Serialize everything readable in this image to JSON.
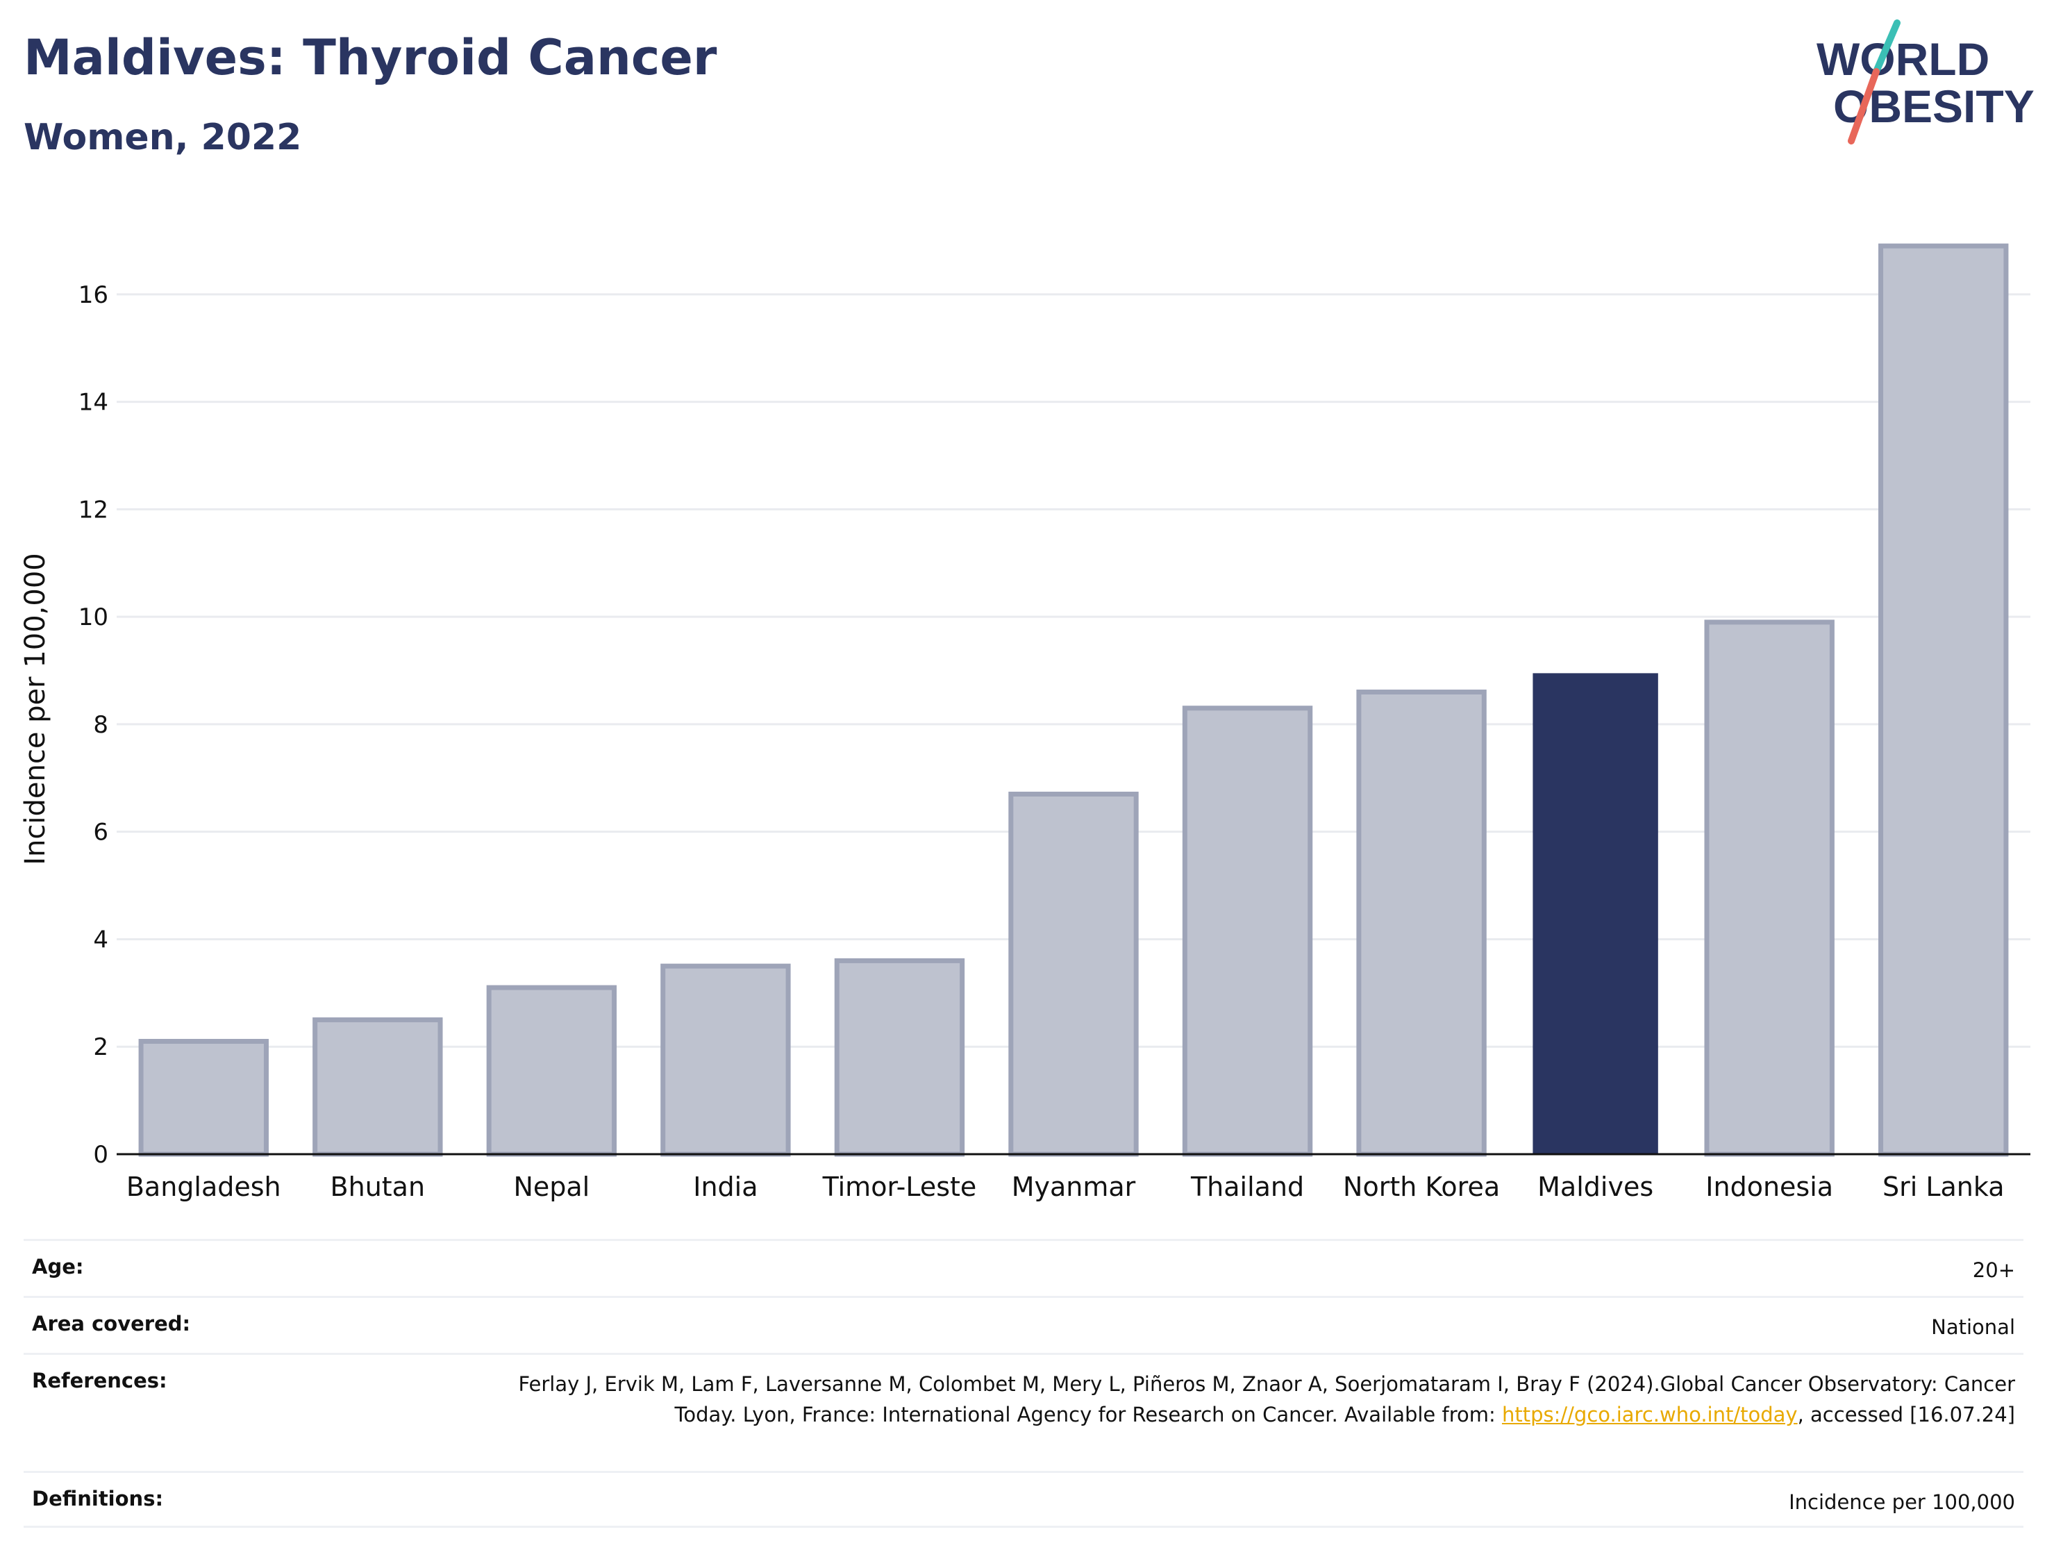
{
  "header": {
    "title": "Maldives: Thyroid Cancer",
    "subtitle": "Women, 2022"
  },
  "logo": {
    "line1": "WORLD",
    "line2": "OBESITY",
    "colors": {
      "text": "#2a3561",
      "slash_top": "#3bbfb5",
      "slash_bottom": "#e8675a"
    }
  },
  "colors": {
    "bar": "#bec2cf",
    "bar_border": "#9ea4b8",
    "highlight": "#2a3561",
    "grid": "#e9ebef",
    "axis": "#111111",
    "link": "#e8a900"
  },
  "chart_data": {
    "type": "bar",
    "categories": [
      "Bangladesh",
      "Bhutan",
      "Nepal",
      "India",
      "Timor-Leste",
      "Myanmar",
      "Thailand",
      "North Korea",
      "Maldives",
      "Indonesia",
      "Sri Lanka"
    ],
    "values": [
      2.1,
      2.5,
      3.1,
      3.5,
      3.6,
      6.7,
      8.3,
      8.6,
      8.95,
      9.9,
      16.9
    ],
    "highlight_category": "Maldives",
    "ylabel": "Incidence per 100,000",
    "xlabel": "",
    "ylim": [
      0,
      17.6
    ],
    "yticks": [
      0,
      2,
      4,
      6,
      8,
      10,
      12,
      14,
      16
    ],
    "grid": true
  },
  "meta": {
    "age": {
      "label": "Age:",
      "value": "20+"
    },
    "area": {
      "label": "Area covered:",
      "value": "National"
    },
    "references": {
      "label": "References:",
      "text_before": "Ferlay J, Ervik M, Lam F, Laversanne M, Colombet M, Mery L, Piñeros M, Znaor A, Soerjomataram I, Bray F (2024).Global Cancer Observatory: Cancer Today. Lyon, France: International Agency for Research on Cancer. Available from: ",
      "link": "https://gco.iarc.who.int/today",
      "text_after": ", accessed [16.07.24]"
    },
    "definitions": {
      "label": "Definitions:",
      "value": "Incidence per 100,000"
    }
  }
}
